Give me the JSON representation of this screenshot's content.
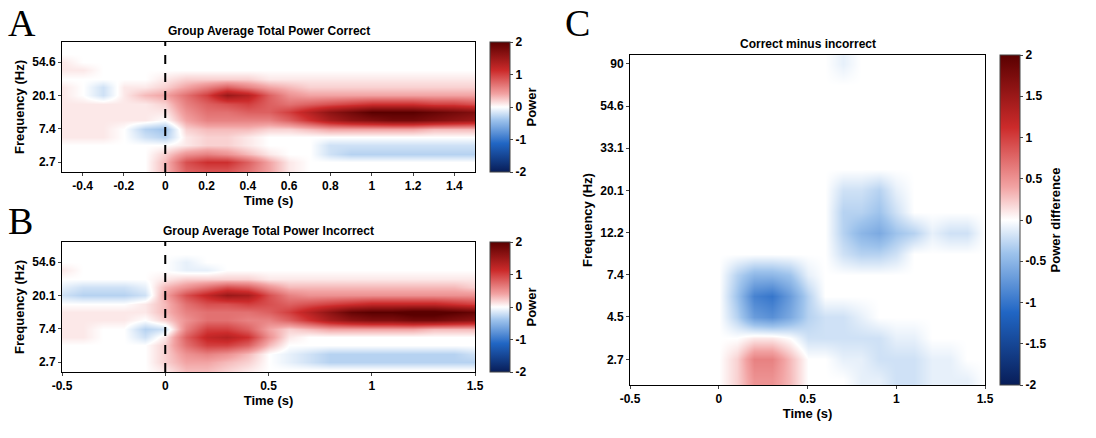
{
  "chart_data": [
    {
      "type": "heatmap",
      "panel": "A",
      "title": "Group Average Total Power Correct",
      "xlabel": "Time (s)",
      "ylabel": "Frequency (Hz)",
      "xlim": [
        -0.5,
        1.5
      ],
      "xticks": [
        -0.4,
        -0.2,
        0,
        0.2,
        0.4,
        0.6,
        0.8,
        1,
        1.2,
        1.4
      ],
      "ylim": [
        2,
        100
      ],
      "yticks": [
        2.7,
        7.4,
        20.1,
        54.6
      ],
      "log": "y",
      "grid": false,
      "onset_line": 0,
      "colorbar": {
        "title": "Power",
        "clim": [
          -2,
          2
        ],
        "ticks": [
          -2,
          -1,
          0,
          1,
          2
        ]
      },
      "x": [
        -0.5,
        -0.4,
        -0.3,
        -0.2,
        -0.1,
        0,
        0.1,
        0.2,
        0.3,
        0.4,
        0.5,
        0.6,
        0.7,
        0.8,
        0.9,
        1,
        1.1,
        1.2,
        1.3,
        1.4,
        1.5
      ],
      "y": [
        2.12,
        2.72,
        3.49,
        4.48,
        5.75,
        7.39,
        9.49,
        12.18,
        15.64,
        20.09,
        25.79,
        33.12,
        42.52,
        54.6,
        70.1,
        90
      ],
      "z": [
        [
          0,
          0,
          0,
          0,
          0,
          0.3,
          0.8,
          0.9,
          0.9,
          0.7,
          0.4,
          0.1,
          0,
          0,
          0,
          0,
          0,
          0,
          0,
          0,
          0
        ],
        [
          0,
          0,
          0,
          0,
          0,
          0.3,
          0.9,
          1.1,
          1.1,
          0.8,
          0.4,
          0.1,
          0,
          0,
          0,
          0,
          0,
          0,
          0,
          0,
          0
        ],
        [
          0,
          0,
          0,
          0,
          0,
          0.2,
          0.5,
          0.6,
          0.5,
          0.3,
          0.1,
          0,
          0,
          -0.2,
          -0.3,
          -0.3,
          -0.3,
          -0.3,
          -0.3,
          -0.3,
          -0.3
        ],
        [
          0,
          0,
          0,
          0,
          0,
          0,
          0.1,
          0.2,
          0.2,
          0.1,
          0,
          0,
          0,
          -0.2,
          -0.2,
          -0.2,
          -0.2,
          -0.2,
          -0.2,
          -0.2,
          -0.2
        ],
        [
          0.1,
          0.1,
          0.1,
          0,
          -0.2,
          -0.3,
          0.1,
          0.2,
          0.2,
          0.1,
          0,
          0,
          0,
          0,
          0,
          0,
          0,
          0,
          0,
          0,
          0
        ],
        [
          0.1,
          0.1,
          0.1,
          0,
          -0.3,
          -0.4,
          0.2,
          0.3,
          0.3,
          0.3,
          0.2,
          0.2,
          0.3,
          0.4,
          0.4,
          0.4,
          0.4,
          0.4,
          0.3,
          0.3,
          0.3
        ],
        [
          0.1,
          0.1,
          0.1,
          0.1,
          0.1,
          0,
          0.4,
          0.6,
          0.6,
          0.6,
          0.6,
          0.8,
          1.1,
          1.4,
          1.6,
          1.7,
          1.8,
          1.8,
          1.7,
          1.6,
          1.5
        ],
        [
          0.1,
          0.1,
          0.1,
          0.1,
          0.1,
          0.1,
          0.5,
          0.7,
          0.7,
          0.8,
          0.8,
          1.0,
          1.3,
          1.6,
          1.8,
          2.0,
          2.0,
          2.0,
          1.9,
          1.8,
          1.7
        ],
        [
          0.1,
          0.1,
          0.1,
          0.1,
          0.1,
          0.2,
          0.6,
          0.8,
          0.9,
          1.0,
          0.8,
          0.7,
          0.8,
          0.9,
          1.0,
          1.1,
          1.1,
          1.1,
          1.0,
          1.0,
          0.9
        ],
        [
          0.1,
          0,
          -0.2,
          0.1,
          0.3,
          0.4,
          0.7,
          1.0,
          1.5,
          1.3,
          0.8,
          0.5,
          0.4,
          0.4,
          0.4,
          0.4,
          0.4,
          0.4,
          0.4,
          0.4,
          0.4
        ],
        [
          0.1,
          0,
          -0.2,
          0.1,
          0.1,
          0.2,
          0.4,
          0.6,
          0.8,
          0.6,
          0.4,
          0.3,
          0.2,
          0.2,
          0.2,
          0.2,
          0.2,
          0.2,
          0.2,
          0.2,
          0.2
        ],
        [
          0,
          0,
          0,
          0,
          0,
          0.1,
          0.2,
          0.2,
          0.2,
          0.2,
          0.1,
          0.1,
          0.1,
          0.1,
          0.1,
          0.1,
          0.1,
          0.1,
          0.1,
          0.1,
          0.1
        ],
        [
          0.1,
          0.1,
          0,
          0,
          0,
          0,
          0,
          0,
          0,
          0,
          0,
          0,
          0,
          0,
          0,
          0,
          0,
          0,
          0,
          0,
          0
        ],
        [
          0.1,
          0,
          0,
          0,
          0,
          0,
          0,
          0,
          0,
          0,
          0,
          0,
          0,
          0,
          0,
          0,
          0,
          0,
          0,
          0,
          0
        ],
        [
          0,
          0,
          0,
          0,
          0,
          0,
          0,
          0,
          0,
          0,
          0,
          0,
          0,
          0,
          0,
          0,
          0,
          0,
          0,
          0,
          0
        ],
        [
          0,
          0,
          0,
          0,
          0,
          0,
          0,
          0,
          0,
          0,
          0,
          0,
          0,
          0,
          0,
          0,
          0,
          0,
          0,
          0,
          0
        ]
      ]
    },
    {
      "type": "heatmap",
      "panel": "B",
      "title": "Group Average Total Power Incorrect",
      "xlabel": "Time (s)",
      "ylabel": "Frequency (Hz)",
      "xlim": [
        -0.5,
        1.5
      ],
      "xticks": [
        -0.5,
        0,
        0.5,
        1,
        1.5
      ],
      "ylim": [
        2,
        100
      ],
      "yticks": [
        2.7,
        7.4,
        20.1,
        54.6
      ],
      "log": "y",
      "grid": false,
      "onset_line": 0,
      "colorbar": {
        "title": "Power",
        "clim": [
          -2,
          2
        ],
        "ticks": [
          -2,
          -1,
          0,
          1,
          2
        ]
      },
      "x": [
        -0.5,
        -0.4,
        -0.3,
        -0.2,
        -0.1,
        0,
        0.1,
        0.2,
        0.3,
        0.4,
        0.5,
        0.6,
        0.7,
        0.8,
        0.9,
        1,
        1.1,
        1.2,
        1.3,
        1.4,
        1.5
      ],
      "y": [
        2.12,
        2.72,
        3.49,
        4.48,
        5.75,
        7.39,
        9.49,
        12.18,
        15.64,
        20.09,
        25.79,
        33.12,
        42.52,
        54.6,
        70.1,
        90
      ],
      "z": [
        [
          0,
          0,
          0,
          0,
          0,
          0.1,
          0.3,
          0.3,
          0.2,
          0.1,
          0,
          0,
          0,
          0,
          0,
          0,
          0,
          0,
          0,
          0,
          0
        ],
        [
          0,
          0,
          0,
          0,
          0,
          0.2,
          0.4,
          0.4,
          0.3,
          0.2,
          0,
          -0.1,
          -0.2,
          -0.3,
          -0.3,
          -0.3,
          -0.3,
          -0.3,
          -0.3,
          -0.3,
          -0.3
        ],
        [
          0,
          0,
          0,
          0,
          0,
          0.2,
          0.5,
          0.6,
          0.5,
          0.3,
          0,
          -0.1,
          -0.2,
          -0.3,
          -0.3,
          -0.3,
          -0.3,
          -0.3,
          -0.3,
          -0.3,
          -0.2
        ],
        [
          0,
          0,
          0,
          0,
          0,
          0.2,
          0.7,
          1.0,
          1.0,
          0.8,
          0.3,
          0,
          0,
          0,
          0,
          0,
          0,
          0,
          0,
          0,
          0
        ],
        [
          0.1,
          0.1,
          0,
          0,
          -0.2,
          0.1,
          0.8,
          1.2,
          1.3,
          1.1,
          0.5,
          0.1,
          0,
          0,
          0,
          0,
          0,
          0,
          0,
          0,
          0
        ],
        [
          0.1,
          0.1,
          0,
          0,
          -0.3,
          -0.2,
          0.6,
          1.0,
          1.0,
          0.8,
          0.4,
          0.2,
          0.3,
          0.4,
          0.4,
          0.4,
          0.4,
          0.4,
          0.3,
          0.3,
          0.3
        ],
        [
          0.1,
          0.1,
          0.1,
          0.1,
          0,
          0.2,
          0.5,
          0.7,
          0.7,
          0.6,
          0.6,
          0.8,
          1.1,
          1.4,
          1.6,
          1.7,
          1.7,
          1.8,
          1.8,
          1.7,
          1.6
        ],
        [
          0.1,
          0.1,
          0.1,
          0.1,
          0.1,
          0.3,
          0.6,
          0.7,
          0.7,
          0.7,
          0.8,
          1.0,
          1.3,
          1.6,
          1.9,
          2.0,
          2.0,
          2.1,
          2.1,
          2.0,
          1.9
        ],
        [
          0,
          0,
          0,
          0,
          0.1,
          0.3,
          0.7,
          0.9,
          0.9,
          1.0,
          0.9,
          0.8,
          0.9,
          1.0,
          1.1,
          1.2,
          1.2,
          1.2,
          1.2,
          1.1,
          1.0
        ],
        [
          -0.2,
          -0.3,
          -0.3,
          -0.3,
          -0.2,
          0.4,
          0.9,
          1.2,
          1.5,
          1.4,
          0.9,
          0.6,
          0.5,
          0.5,
          0.5,
          0.5,
          0.5,
          0.5,
          0.5,
          0.5,
          0.5
        ],
        [
          -0.1,
          -0.2,
          -0.2,
          -0.2,
          -0.1,
          0.3,
          0.5,
          0.7,
          0.9,
          0.8,
          0.5,
          0.3,
          0.3,
          0.3,
          0.3,
          0.3,
          0.3,
          0.3,
          0.3,
          0.3,
          0.2
        ],
        [
          0,
          0,
          0,
          0,
          0,
          0.1,
          0.2,
          0.2,
          0.2,
          0.2,
          0.1,
          0.1,
          0.1,
          0.1,
          0.1,
          0.1,
          0.1,
          0.1,
          0.1,
          0.1,
          0.1
        ],
        [
          0.1,
          0,
          0,
          0,
          0,
          0,
          -0.1,
          -0.1,
          0,
          0,
          0,
          0,
          0,
          0,
          0,
          0,
          0,
          0,
          0,
          0,
          0
        ],
        [
          0,
          0,
          0,
          0,
          0,
          0,
          -0.1,
          0,
          0,
          0,
          0,
          0,
          0,
          0,
          0,
          0,
          0,
          0,
          0,
          0,
          0
        ],
        [
          0,
          0,
          0,
          0,
          0,
          0,
          0,
          0,
          0,
          0,
          0,
          0,
          0,
          0,
          0,
          0,
          0,
          0,
          0,
          0,
          0
        ],
        [
          0,
          0,
          0,
          0,
          0,
          0,
          0,
          0,
          0,
          0,
          0,
          0,
          0,
          0,
          0,
          0,
          0,
          0,
          0,
          0,
          0
        ]
      ]
    },
    {
      "type": "heatmap",
      "panel": "C",
      "title": "Correct minus incorrect",
      "xlabel": "Time (s)",
      "ylabel": "Frequency (Hz)",
      "xlim": [
        -0.5,
        1.5
      ],
      "xticks": [
        -0.5,
        0,
        0.5,
        1,
        1.5
      ],
      "ylim": [
        2,
        100
      ],
      "yticks": [
        2.7,
        4.5,
        7.4,
        12.2,
        20.1,
        33.1,
        54.6,
        90
      ],
      "log": "y",
      "grid": false,
      "colorbar": {
        "title": "Power difference",
        "clim": [
          -2,
          2
        ],
        "ticks": [
          -2,
          -1.5,
          -1,
          -0.5,
          0,
          0.5,
          1,
          1.5,
          2
        ]
      },
      "x": [
        -0.5,
        -0.4,
        -0.3,
        -0.2,
        -0.1,
        0,
        0.1,
        0.2,
        0.3,
        0.4,
        0.5,
        0.6,
        0.7,
        0.8,
        0.9,
        1,
        1.1,
        1.2,
        1.3,
        1.4,
        1.5
      ],
      "y": [
        2.12,
        2.72,
        3.49,
        4.48,
        5.75,
        7.39,
        9.49,
        12.18,
        15.64,
        20.09,
        25.79,
        33.12,
        42.52,
        54.6,
        70.1,
        90
      ],
      "z": [
        [
          0,
          0,
          0,
          0,
          0,
          0,
          0.2,
          0.5,
          0.5,
          0.3,
          0,
          0,
          0,
          -0.1,
          -0.1,
          -0.2,
          -0.2,
          -0.1,
          -0.1,
          -0.1,
          0
        ],
        [
          0,
          0,
          0,
          0,
          0,
          0,
          0.2,
          0.6,
          0.6,
          0.3,
          0,
          0,
          -0.1,
          -0.1,
          -0.2,
          -0.2,
          -0.2,
          -0.1,
          -0.1,
          0,
          0
        ],
        [
          0,
          0,
          0,
          0,
          0,
          0,
          0,
          0.1,
          0.1,
          0,
          -0.2,
          -0.2,
          -0.2,
          -0.2,
          -0.2,
          -0.1,
          -0.1,
          0,
          0,
          0,
          0
        ],
        [
          0,
          0,
          0,
          0,
          0,
          0,
          -0.3,
          -0.7,
          -0.8,
          -0.6,
          -0.3,
          -0.2,
          -0.2,
          -0.1,
          0,
          0,
          0,
          0,
          0,
          0,
          0
        ],
        [
          0,
          0,
          0,
          0,
          0,
          0,
          -0.4,
          -0.9,
          -1.0,
          -0.7,
          -0.3,
          0,
          0,
          0,
          0,
          0,
          0,
          0,
          0,
          0,
          0
        ],
        [
          0,
          0,
          0,
          0,
          0,
          0,
          -0.3,
          -0.5,
          -0.5,
          -0.4,
          -0.1,
          0,
          0,
          0,
          0,
          0,
          0,
          0,
          0,
          0,
          0
        ],
        [
          0,
          0,
          0,
          0,
          0,
          0,
          0,
          0,
          0,
          0,
          0,
          0,
          -0.2,
          -0.3,
          -0.3,
          -0.2,
          0,
          0,
          0,
          0,
          0
        ],
        [
          0,
          0,
          0,
          0,
          0,
          0,
          0,
          0,
          0,
          0,
          0,
          0,
          -0.3,
          -0.5,
          -0.6,
          -0.4,
          -0.3,
          -0.1,
          -0.2,
          -0.2,
          0
        ],
        [
          0,
          0,
          0,
          0,
          0,
          0,
          0,
          0,
          0,
          0,
          0,
          0,
          -0.3,
          -0.3,
          -0.4,
          -0.2,
          0,
          0,
          0,
          0,
          0
        ],
        [
          0,
          0,
          0,
          0,
          0,
          0,
          0,
          0,
          0,
          0,
          0,
          0,
          -0.2,
          -0.2,
          -0.3,
          -0.1,
          0,
          0,
          0,
          0,
          0
        ],
        [
          0,
          0,
          0,
          0,
          0,
          0,
          0,
          0,
          0,
          0,
          0,
          0,
          0,
          0,
          0,
          0,
          0,
          0,
          0,
          0,
          0
        ],
        [
          0,
          0,
          0,
          0,
          0,
          0,
          0,
          0,
          0,
          0,
          0,
          0,
          0,
          0,
          0,
          0,
          0,
          0,
          0,
          0,
          0
        ],
        [
          0,
          0,
          0,
          0,
          0,
          0,
          0,
          0,
          0,
          0,
          0,
          0,
          0,
          0,
          0,
          0,
          0,
          0,
          0,
          0,
          0
        ],
        [
          0,
          0,
          0,
          0,
          0,
          0,
          0,
          0,
          0,
          0,
          0,
          0,
          0,
          0,
          0,
          0,
          0,
          0,
          0,
          0,
          0
        ],
        [
          0,
          0,
          0,
          0,
          0,
          0,
          0,
          0,
          0,
          0,
          0,
          0,
          0,
          0,
          0,
          0,
          0,
          0,
          0,
          0,
          0
        ],
        [
          0,
          0,
          0,
          0,
          0,
          0,
          0,
          0,
          0,
          0,
          0,
          0,
          -0.1,
          0,
          0,
          0,
          0,
          0,
          0,
          0,
          0
        ]
      ]
    }
  ]
}
